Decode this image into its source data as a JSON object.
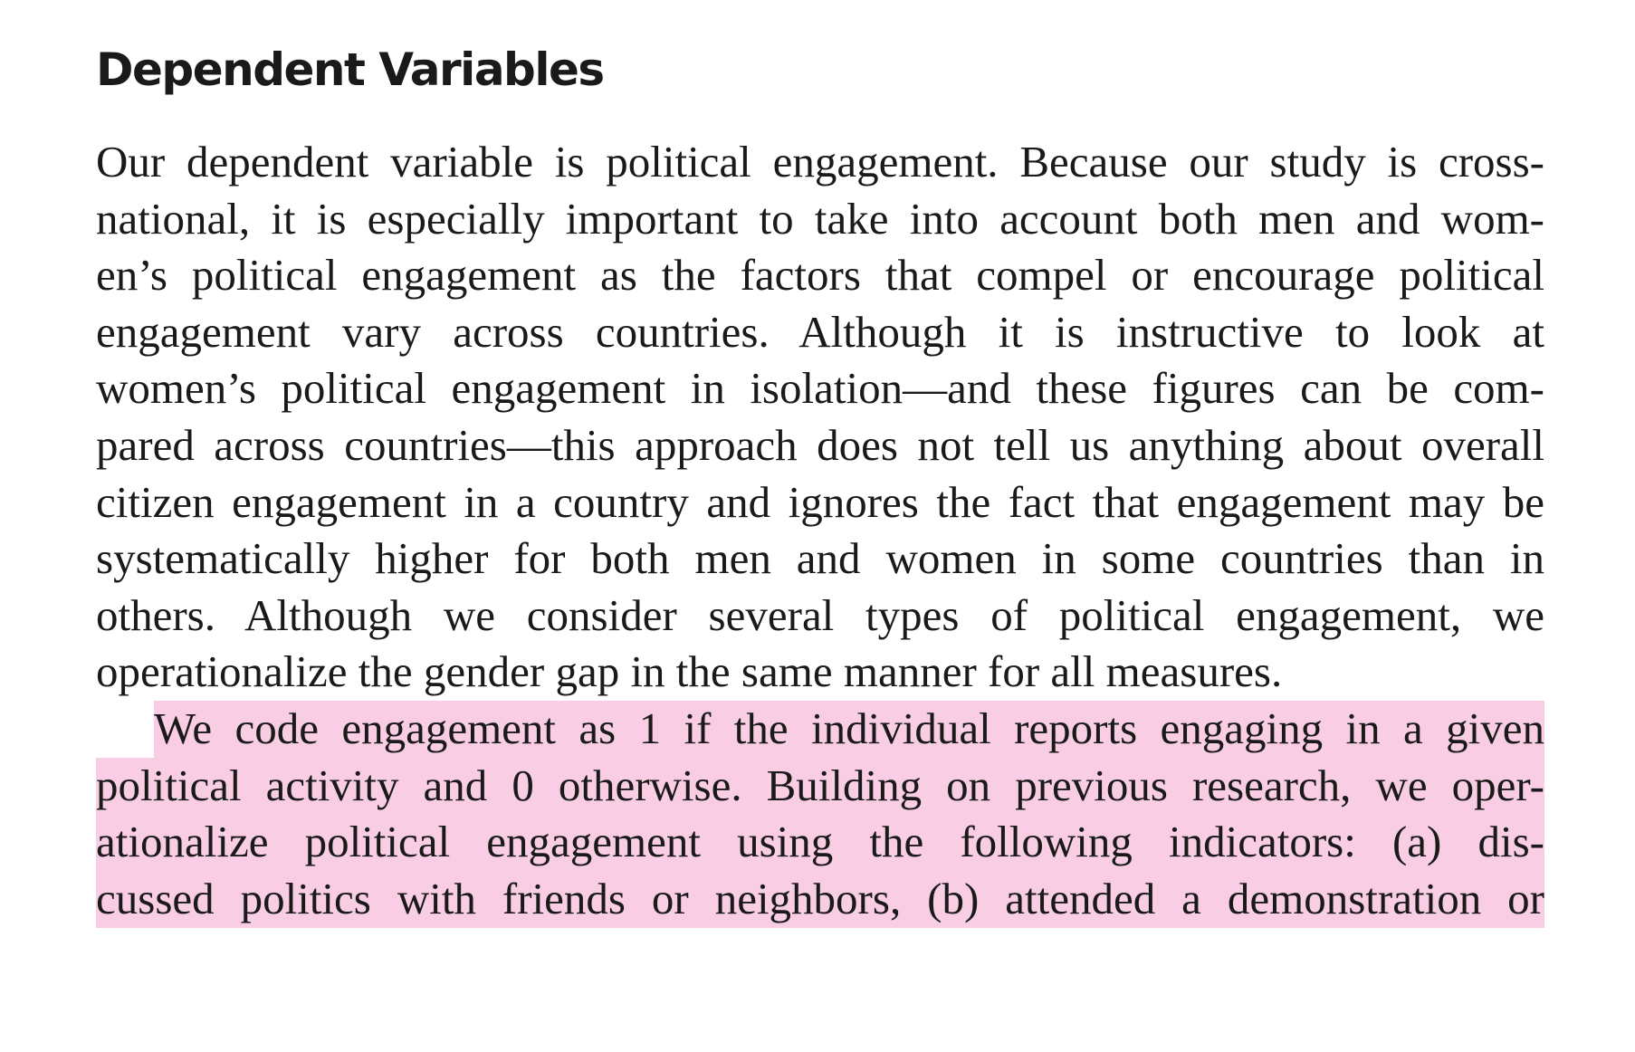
{
  "heading": "Dependent Variables",
  "paragraph_1": [
    "Our dependent variable is political engagement. Because our study is cross-",
    "national, it is especially important to take into account both men and wom-",
    "en’s political engagement as the factors that compel or encourage political",
    "engagement vary across countries. Although it is instructive to look at",
    "women’s political engagement in isolation—and these figures can be com-",
    "pared across countries—this approach does not tell us anything about overall",
    "citizen engagement in a country and ignores the fact that engagement may be",
    "systematically higher for both men and women in some countries than in",
    "others. Although we consider several types of political engagement, we",
    "operationalize the gender gap in the same manner for all measures."
  ],
  "paragraph_2": [
    "We code engagement as 1 if the individual reports engaging in a given",
    "political activity and 0 otherwise. Building on previous research, we oper-",
    "ationalize political engagement using the following indicators: (a) dis-",
    "cussed politics with friends or neighbors, (b) attended a demonstration or"
  ],
  "highlight_color": "#f9cde3",
  "text_color": "#1a1a1a"
}
